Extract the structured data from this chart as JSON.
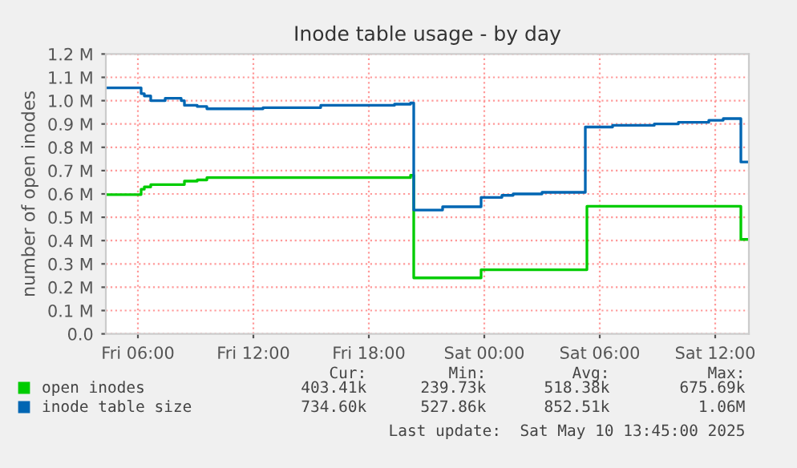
{
  "chart_data": {
    "type": "step",
    "title": "Inode table usage - by day",
    "ylabel": "number of open inodes",
    "xlim": [
      "2025-05-09T04:20",
      "2025-05-10T13:45"
    ],
    "xticks": [
      {
        "value": "2025-05-09T06:00",
        "label": "Fri 06:00"
      },
      {
        "value": "2025-05-09T12:00",
        "label": "Fri 12:00"
      },
      {
        "value": "2025-05-09T18:00",
        "label": "Fri 18:00"
      },
      {
        "value": "2025-05-10T00:00",
        "label": "Sat 00:00"
      },
      {
        "value": "2025-05-10T06:00",
        "label": "Sat 06:00"
      },
      {
        "value": "2025-05-10T12:00",
        "label": "Sat 12:00"
      }
    ],
    "ylim": [
      0,
      1.2
    ],
    "yticks": [
      {
        "value": 0,
        "label": "0.0"
      },
      {
        "value": 0.1,
        "label": "0.1 M"
      },
      {
        "value": 0.2,
        "label": "0.2 M"
      },
      {
        "value": 0.3,
        "label": "0.3 M"
      },
      {
        "value": 0.4,
        "label": "0.4 M"
      },
      {
        "value": 0.5,
        "label": "0.5 M"
      },
      {
        "value": 0.6,
        "label": "0.6 M"
      },
      {
        "value": 0.7,
        "label": "0.7 M"
      },
      {
        "value": 0.8,
        "label": "0.8 M"
      },
      {
        "value": 0.9,
        "label": "0.9 M"
      },
      {
        "value": 1.0,
        "label": "1.0 M"
      },
      {
        "value": 1.1,
        "label": "1.1 M"
      },
      {
        "value": 1.2,
        "label": "1.2 M"
      }
    ],
    "grid": true,
    "legend": "bottom",
    "line_style": "solid",
    "marker": "none",
    "series": [
      {
        "name": "open inodes",
        "color": "#00cc00",
        "x": [
          "2025-05-09T04:20",
          "2025-05-09T06:10",
          "2025-05-09T06:20",
          "2025-05-09T06:40",
          "2025-05-09T07:05",
          "2025-05-09T08:25",
          "2025-05-09T09:05",
          "2025-05-09T09:35",
          "2025-05-09T20:10",
          "2025-05-09T20:20",
          "2025-05-09T23:50",
          "2025-05-10T05:20",
          "2025-05-10T13:20",
          "2025-05-10T13:45"
        ],
        "values": [
          0.597,
          0.62,
          0.63,
          0.64,
          0.64,
          0.655,
          0.66,
          0.67,
          0.68,
          0.24,
          0.275,
          0.547,
          0.405,
          0.405
        ]
      },
      {
        "name": "inode table size",
        "color": "#0066b3",
        "x": [
          "2025-05-09T04:20",
          "2025-05-09T06:10",
          "2025-05-09T06:20",
          "2025-05-09T06:40",
          "2025-05-09T07:05",
          "2025-05-09T07:25",
          "2025-05-09T08:15",
          "2025-05-09T08:25",
          "2025-05-09T09:05",
          "2025-05-09T09:35",
          "2025-05-09T12:30",
          "2025-05-09T15:30",
          "2025-05-09T19:20",
          "2025-05-09T20:10",
          "2025-05-09T20:20",
          "2025-05-09T21:50",
          "2025-05-09T23:50",
          "2025-05-10T00:55",
          "2025-05-10T01:30",
          "2025-05-10T03:00",
          "2025-05-10T05:15",
          "2025-05-10T06:40",
          "2025-05-10T08:50",
          "2025-05-10T10:05",
          "2025-05-10T11:40",
          "2025-05-10T12:25",
          "2025-05-10T13:20",
          "2025-05-10T13:45"
        ],
        "values": [
          1.055,
          1.03,
          1.02,
          1.0,
          1.0,
          1.01,
          1.0,
          0.98,
          0.975,
          0.965,
          0.97,
          0.98,
          0.985,
          0.99,
          0.531,
          0.545,
          0.585,
          0.594,
          0.6,
          0.607,
          0.887,
          0.894,
          0.9,
          0.907,
          0.916,
          0.923,
          0.737,
          0.737
        ]
      }
    ],
    "annotations": [
      "Cur:",
      "Min:",
      "Avg:",
      "Max:",
      "403.41k",
      "239.73k",
      "518.38k",
      "675.69k",
      "734.60k",
      "527.86k",
      "852.51k",
      "1.06M",
      "Last update:  Sat May 10 13:45:00 2025"
    ]
  }
}
